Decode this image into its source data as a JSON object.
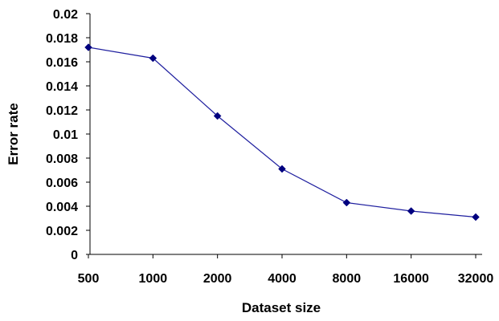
{
  "chart_data": {
    "type": "line",
    "xlabel": "Dataset size",
    "ylabel": "Error rate",
    "categories": [
      "500",
      "1000",
      "2000",
      "4000",
      "8000",
      "16000",
      "32000"
    ],
    "series": [
      {
        "values": [
          0.0172,
          0.0163,
          0.0115,
          0.0071,
          0.0043,
          0.0036,
          0.0031
        ]
      }
    ],
    "ylim": [
      0,
      0.02
    ],
    "yticks": [
      "0",
      "0.002",
      "0.004",
      "0.006",
      "0.008",
      "0.01",
      "0.012",
      "0.014",
      "0.016",
      "0.018",
      "0.02"
    ],
    "grid": false,
    "legend": "none",
    "colors": {
      "line": "#1f1f9f",
      "marker": "#00007f",
      "axis": "#000000"
    }
  }
}
